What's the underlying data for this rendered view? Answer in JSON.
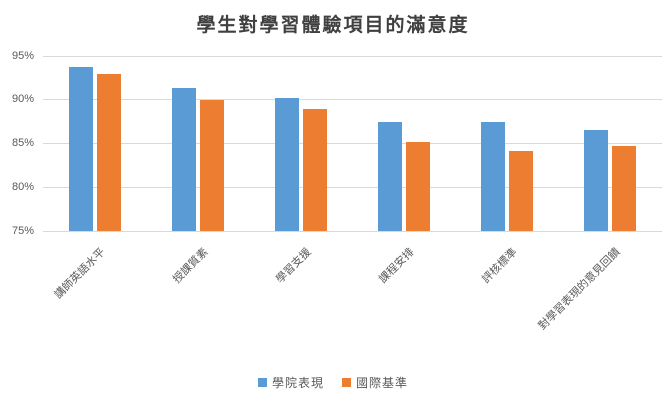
{
  "title": "學生對學習體驗項目的滿意度",
  "colors": {
    "series1": "#5B9BD5",
    "series2": "#ED7D31",
    "gridline": "#D9D9D9",
    "axis_text": "#595959",
    "title_text": "#404040"
  },
  "chart_data": {
    "type": "bar",
    "title": "學生對學習體驗項目的滿意度",
    "categories": [
      "講師英語水平",
      "授課質素",
      "學習支援",
      "課程安排",
      "評核標準",
      "對學習表現的意見回饋"
    ],
    "series": [
      {
        "name": "學院表現",
        "color": "#5B9BD5",
        "values": [
          93.7,
          91.4,
          90.2,
          87.5,
          87.5,
          86.5
        ]
      },
      {
        "name": "國際基準",
        "color": "#ED7D31",
        "values": [
          92.9,
          90.0,
          88.9,
          85.2,
          84.2,
          84.7
        ]
      }
    ],
    "xlabel": "",
    "ylabel": "",
    "ylim": [
      75,
      95
    ],
    "ytick_values": [
      75,
      80,
      85,
      90,
      95
    ],
    "ytick_labels": [
      "75%",
      "80%",
      "85%",
      "90%",
      "95%"
    ],
    "grid": true,
    "legend_position": "bottom"
  }
}
